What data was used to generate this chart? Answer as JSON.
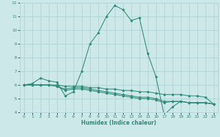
{
  "x": [
    0,
    1,
    2,
    3,
    4,
    5,
    6,
    7,
    8,
    9,
    10,
    11,
    12,
    13,
    14,
    15,
    16,
    17,
    18,
    19,
    20,
    21,
    22,
    23
  ],
  "line1": [
    6.0,
    6.1,
    6.5,
    6.3,
    6.2,
    5.2,
    5.5,
    7.0,
    9.0,
    9.8,
    11.0,
    11.8,
    11.5,
    10.7,
    10.9,
    8.3,
    6.6,
    3.8,
    4.4,
    4.8,
    4.7,
    4.7,
    4.7,
    4.6
  ],
  "line2": [
    6.0,
    6.0,
    6.0,
    6.0,
    5.9,
    5.6,
    5.7,
    5.7,
    5.6,
    5.5,
    5.4,
    5.3,
    5.2,
    5.1,
    5.0,
    5.0,
    4.9,
    4.7,
    4.8,
    4.8,
    4.7,
    4.7,
    4.7,
    4.6
  ],
  "line3": [
    6.0,
    6.0,
    6.0,
    6.0,
    5.9,
    5.7,
    5.8,
    5.8,
    5.7,
    5.6,
    5.5,
    5.4,
    5.3,
    5.2,
    5.1,
    5.1,
    5.0,
    4.8,
    4.8,
    4.8,
    4.7,
    4.7,
    4.7,
    4.6
  ],
  "line4": [
    6.0,
    6.0,
    6.0,
    6.0,
    6.0,
    5.9,
    5.9,
    5.9,
    5.8,
    5.8,
    5.7,
    5.7,
    5.6,
    5.6,
    5.5,
    5.5,
    5.4,
    5.3,
    5.3,
    5.3,
    5.2,
    5.2,
    5.1,
    4.6
  ],
  "line_color": "#2e8b7a",
  "bg_color": "#cde8e8",
  "grid_color": "#aad4d4",
  "xlabel": "Humidex (Indice chaleur)",
  "ylim": [
    4,
    12
  ],
  "xlim": [
    -0.5,
    23.5
  ],
  "yticks": [
    4,
    5,
    6,
    7,
    8,
    9,
    10,
    11,
    12
  ],
  "xticks": [
    0,
    1,
    2,
    3,
    4,
    5,
    6,
    7,
    8,
    9,
    10,
    11,
    12,
    13,
    14,
    15,
    16,
    17,
    18,
    19,
    20,
    21,
    22,
    23
  ]
}
